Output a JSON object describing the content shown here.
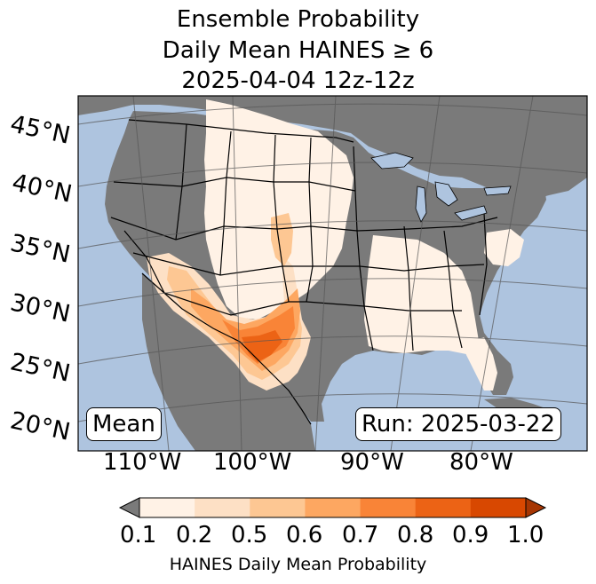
{
  "title": {
    "line1": "Ensemble Probability",
    "line2": "Daily Mean HAINES ≥ 6",
    "line3": "2025-04-04 12z-12z"
  },
  "map": {
    "projection": "Lambert conformal, CONUS",
    "latitude_labels": [
      "45°N",
      "40°N",
      "35°N",
      "30°N",
      "25°N",
      "20°N"
    ],
    "longitude_labels": [
      "110°W",
      "100°W",
      "90°W",
      "80°W"
    ],
    "colors": {
      "ocean": "#aec4df",
      "land": "#7a7a7a",
      "border": "#000000",
      "grid": "#555555"
    }
  },
  "annotations": {
    "mean_label": "Mean",
    "run_label": "Run: 2025-03-22"
  },
  "colorbar": {
    "label": "HAINES Daily Mean Probability",
    "ticks": [
      "0.1",
      "0.2",
      "0.5",
      "0.6",
      "0.7",
      "0.8",
      "0.9",
      "1.0"
    ],
    "under_color": "#7a7a7a",
    "colors": [
      "#fff2e6",
      "#fde0c5",
      "#fdc793",
      "#fda761",
      "#f98437",
      "#ec6315",
      "#d84801"
    ],
    "over_color": "#a63603"
  }
}
